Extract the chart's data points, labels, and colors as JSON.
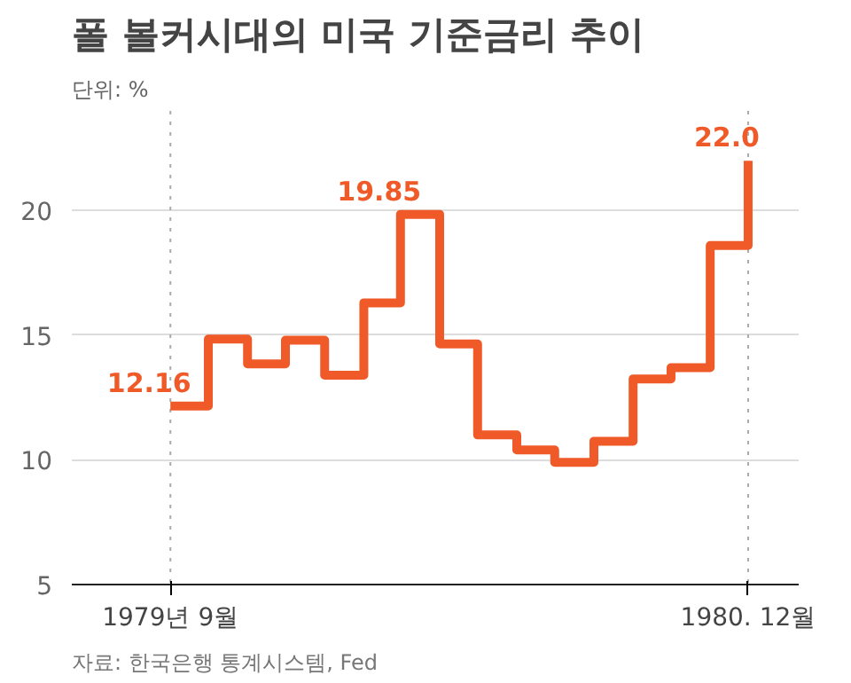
{
  "chart_data": {
    "type": "step",
    "title": "폴 볼커시대의 미국 기준금리 추이",
    "ylabel": "단위: %",
    "x": [
      "1979-09",
      "1979-10",
      "1979-11",
      "1979-12",
      "1980-01",
      "1980-02",
      "1980-03",
      "1980-04",
      "1980-05",
      "1980-06",
      "1980-07",
      "1980-08",
      "1980-09",
      "1980-10",
      "1980-11",
      "1980-12"
    ],
    "series": [
      {
        "color": "#f05a28",
        "values": [
          12.16,
          14.85,
          13.85,
          14.8,
          13.4,
          16.3,
          19.85,
          14.65,
          11.0,
          10.4,
          9.9,
          10.75,
          13.25,
          13.7,
          18.6,
          22.0
        ]
      }
    ],
    "xlim": [
      "1979-06-15",
      "1981-01-10"
    ],
    "ylim": [
      5,
      24
    ],
    "yticks": [
      5,
      10,
      15,
      20
    ],
    "xticks": [
      {
        "value": "1979-09",
        "label": "1979년 9월"
      },
      {
        "value": "1980-12",
        "label": "1980. 12월"
      }
    ],
    "ref_lines": [
      {
        "axis": "x",
        "value": "1979-09",
        "label": null,
        "color": "#aaaaaa",
        "line_style": "dotted"
      },
      {
        "axis": "x",
        "value": "1980-12",
        "label": null,
        "color": "#aaaaaa",
        "line_style": "dotted"
      }
    ],
    "annotations": [
      {
        "text": "12.16",
        "x": "1979-09",
        "y": 12.16
      },
      {
        "text": "19.85",
        "x": "1980-03",
        "y": 19.85
      },
      {
        "text": "22.0",
        "x": "1980-12",
        "y": 22.0
      },
      "자료: 한국은행 통계시스템, Fed"
    ],
    "grid": "y",
    "line_style": "solid",
    "marker": "none"
  }
}
